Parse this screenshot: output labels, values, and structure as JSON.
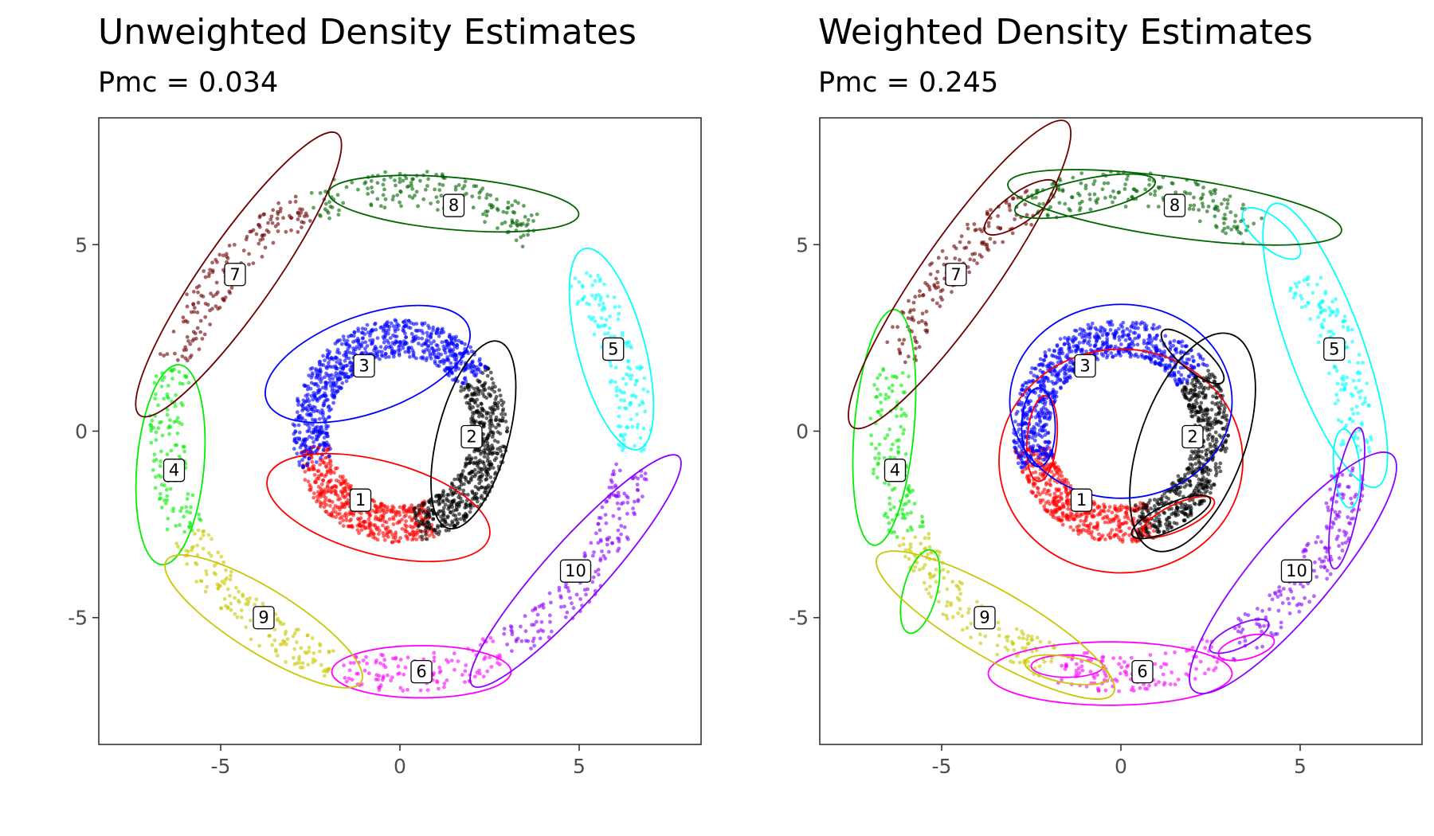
{
  "chart_data": [
    {
      "type": "scatter",
      "title": "Unweighted Density Estimates",
      "subtitle": "Pmc = 0.034",
      "xlim": [
        -8.4,
        8.4
      ],
      "ylim": [
        -8.4,
        8.4
      ],
      "xticks": [
        -5,
        0,
        5
      ],
      "yticks": [
        -5,
        0,
        5
      ],
      "grid": false,
      "clusters": [
        {
          "label": "1",
          "color": "#ff0000",
          "ring": [
            2.0,
            3.0
          ],
          "angles": [
            190,
            290
          ],
          "label_pos": [
            -1.1,
            -1.85
          ],
          "contours": [
            {
              "cx": -0.6,
              "cy": -2.05,
              "rx": 3.2,
              "ry": 1.25,
              "rot": -15
            }
          ]
        },
        {
          "label": "2",
          "color": "#000000",
          "ring": [
            2.0,
            3.0
          ],
          "angles": [
            -80,
            35
          ],
          "label_pos": [
            2.0,
            -0.15
          ],
          "contours": [
            {
              "cx": 2.05,
              "cy": -0.1,
              "rx": 2.7,
              "ry": 0.95,
              "rot": 75
            }
          ]
        },
        {
          "label": "3",
          "color": "#0000ff",
          "ring": [
            2.0,
            3.0
          ],
          "angles": [
            35,
            200
          ],
          "label_pos": [
            -1.0,
            1.75
          ],
          "contours": [
            {
              "cx": -0.9,
              "cy": 1.8,
              "rx": 3.0,
              "ry": 1.3,
              "rot": 20
            }
          ]
        },
        {
          "label": "4",
          "color": "#00ee00",
          "ring": [
            6.0,
            7.0
          ],
          "angles": [
            165,
            205
          ],
          "label_pos": [
            -6.3,
            -1.05
          ],
          "contours": [
            {
              "cx": -6.4,
              "cy": -0.9,
              "rx": 2.8,
              "ry": 0.9,
              "rot": 85
            }
          ]
        },
        {
          "label": "5",
          "color": "#00ffff",
          "ring": [
            6.0,
            7.0
          ],
          "angles": [
            -5,
            40
          ],
          "label_pos": [
            5.95,
            2.2
          ],
          "contours": [
            {
              "cx": 5.9,
              "cy": 2.2,
              "rx": 2.9,
              "ry": 0.9,
              "rot": -75
            }
          ]
        },
        {
          "label": "6",
          "color": "#ff00ff",
          "ring": [
            6.0,
            7.0
          ],
          "angles": [
            255,
            295
          ],
          "label_pos": [
            0.6,
            -6.45
          ],
          "contours": [
            {
              "cx": 0.6,
              "cy": -6.45,
              "rx": 2.5,
              "ry": 0.7,
              "rot": 0
            }
          ]
        },
        {
          "label": "7",
          "color": "#6b0000",
          "ring": [
            6.0,
            7.0
          ],
          "angles": [
            112,
            163
          ],
          "label_pos": [
            -4.6,
            4.2
          ],
          "contours": [
            {
              "cx": -4.5,
              "cy": 4.2,
              "rx": 4.8,
              "ry": 0.95,
              "rot": 55
            }
          ]
        },
        {
          "label": "8",
          "color": "#006400",
          "ring": [
            6.0,
            7.0
          ],
          "angles": [
            55,
            112
          ],
          "label_pos": [
            1.5,
            6.05
          ],
          "contours": [
            {
              "cx": 1.5,
              "cy": 6.1,
              "rx": 3.5,
              "ry": 0.7,
              "rot": -5
            }
          ]
        },
        {
          "label": "9",
          "color": "#c8c800",
          "ring": [
            6.0,
            7.0
          ],
          "angles": [
            205,
            253
          ],
          "label_pos": [
            -3.8,
            -5.0
          ],
          "contours": [
            {
              "cx": -3.8,
              "cy": -5.1,
              "rx": 3.2,
              "ry": 0.85,
              "rot": -32
            }
          ]
        },
        {
          "label": "10",
          "color": "#8b00ff",
          "ring": [
            6.0,
            7.0
          ],
          "angles": [
            297,
            352
          ],
          "label_pos": [
            4.9,
            -3.75
          ],
          "contours": [
            {
              "cx": 4.9,
              "cy": -3.75,
              "rx": 4.3,
              "ry": 0.8,
              "rot": 48
            }
          ]
        }
      ]
    },
    {
      "type": "scatter",
      "title": "Weighted Density Estimates",
      "subtitle": "Pmc = 0.245",
      "xlim": [
        -8.4,
        8.4
      ],
      "ylim": [
        -8.4,
        8.4
      ],
      "xticks": [
        -5,
        0,
        5
      ],
      "yticks": [
        -5,
        0,
        5
      ],
      "grid": false,
      "clusters": [
        {
          "label": "1",
          "color": "#ff0000",
          "ring": [
            2.0,
            3.0
          ],
          "angles": [
            190,
            290
          ],
          "label_pos": [
            -1.1,
            -1.85
          ],
          "contours": [
            {
              "cx": 0.0,
              "cy": -0.8,
              "rx": 3.4,
              "ry": 3.0,
              "rot": 0
            },
            {
              "cx": -2.2,
              "cy": -0.2,
              "rx": 1.2,
              "ry": 0.4,
              "rot": 85
            },
            {
              "cx": 1.6,
              "cy": -2.3,
              "rx": 1.1,
              "ry": 0.35,
              "rot": 25
            }
          ]
        },
        {
          "label": "2",
          "color": "#000000",
          "ring": [
            2.0,
            3.0
          ],
          "angles": [
            -80,
            35
          ],
          "label_pos": [
            2.0,
            -0.15
          ],
          "contours": [
            {
              "cx": 2.0,
              "cy": -0.3,
              "rx": 3.2,
              "ry": 1.4,
              "rot": 70
            },
            {
              "cx": 2.0,
              "cy": 2.0,
              "rx": 1.1,
              "ry": 0.35,
              "rot": -40
            },
            {
              "cx": 1.4,
              "cy": -2.3,
              "rx": 1.2,
              "ry": 0.35,
              "rot": 25
            }
          ]
        },
        {
          "label": "3",
          "color": "#0000ff",
          "ring": [
            2.0,
            3.0
          ],
          "angles": [
            35,
            200
          ],
          "label_pos": [
            -1.0,
            1.75
          ],
          "contours": [
            {
              "cx": 0.0,
              "cy": 0.8,
              "rx": 3.1,
              "ry": 2.6,
              "rot": 0
            },
            {
              "cx": -2.3,
              "cy": 0.1,
              "rx": 1.1,
              "ry": 0.45,
              "rot": 90
            }
          ]
        },
        {
          "label": "4",
          "color": "#00ee00",
          "ring": [
            6.0,
            7.0
          ],
          "angles": [
            165,
            205
          ],
          "label_pos": [
            -6.3,
            -1.05
          ],
          "contours": [
            {
              "cx": -6.6,
              "cy": 0.1,
              "rx": 3.3,
              "ry": 0.8,
              "rot": 85
            },
            {
              "cx": -5.6,
              "cy": -4.3,
              "rx": 1.2,
              "ry": 0.45,
              "rot": 75
            }
          ]
        },
        {
          "label": "5",
          "color": "#00ffff",
          "ring": [
            6.0,
            7.0
          ],
          "angles": [
            -5,
            40
          ],
          "label_pos": [
            5.95,
            2.2
          ],
          "contours": [
            {
              "cx": 5.7,
              "cy": 2.3,
              "rx": 4.2,
              "ry": 1.0,
              "rot": -70
            },
            {
              "cx": 4.2,
              "cy": 5.3,
              "rx": 1.0,
              "ry": 0.4,
              "rot": -40
            },
            {
              "cx": 6.3,
              "cy": -1.0,
              "rx": 1.1,
              "ry": 0.35,
              "rot": -85
            }
          ]
        },
        {
          "label": "6",
          "color": "#ff00ff",
          "ring": [
            6.0,
            7.0
          ],
          "angles": [
            255,
            295
          ],
          "label_pos": [
            0.6,
            -6.45
          ],
          "contours": [
            {
              "cx": -0.3,
              "cy": -6.5,
              "rx": 3.4,
              "ry": 0.85,
              "rot": 0
            },
            {
              "cx": -1.5,
              "cy": -6.3,
              "rx": 1.0,
              "ry": 0.3,
              "rot": 0
            },
            {
              "cx": 3.5,
              "cy": -5.8,
              "rx": 0.8,
              "ry": 0.3,
              "rot": 15
            }
          ]
        },
        {
          "label": "7",
          "color": "#6b0000",
          "ring": [
            6.0,
            7.0
          ],
          "angles": [
            112,
            163
          ],
          "label_pos": [
            -4.6,
            4.2
          ],
          "contours": [
            {
              "cx": -4.5,
              "cy": 4.2,
              "rx": 5.2,
              "ry": 1.0,
              "rot": 55
            },
            {
              "cx": -2.8,
              "cy": 6.0,
              "rx": 1.2,
              "ry": 0.4,
              "rot": 35
            }
          ]
        },
        {
          "label": "8",
          "color": "#006400",
          "ring": [
            6.0,
            7.0
          ],
          "angles": [
            55,
            112
          ],
          "label_pos": [
            1.5,
            6.05
          ],
          "contours": [
            {
              "cx": 1.5,
              "cy": 6.0,
              "rx": 4.7,
              "ry": 0.8,
              "rot": -8
            },
            {
              "cx": -1.0,
              "cy": 6.3,
              "rx": 2.0,
              "ry": 0.45,
              "rot": 12
            }
          ]
        },
        {
          "label": "9",
          "color": "#c8c800",
          "ring": [
            6.0,
            7.0
          ],
          "angles": [
            205,
            253
          ],
          "label_pos": [
            -3.8,
            -5.0
          ],
          "contours": [
            {
              "cx": -3.5,
              "cy": -5.2,
              "rx": 3.8,
              "ry": 0.9,
              "rot": -30
            },
            {
              "cx": -1.5,
              "cy": -6.4,
              "rx": 1.2,
              "ry": 0.35,
              "rot": -10
            }
          ]
        },
        {
          "label": "10",
          "color": "#8b00ff",
          "ring": [
            6.0,
            7.0
          ],
          "angles": [
            297,
            352
          ],
          "label_pos": [
            4.9,
            -3.75
          ],
          "contours": [
            {
              "cx": 4.8,
              "cy": -3.8,
              "rx": 4.3,
              "ry": 1.05,
              "rot": 50
            },
            {
              "cx": 6.3,
              "cy": -1.8,
              "rx": 2.0,
              "ry": 0.35,
              "rot": 80
            },
            {
              "cx": 3.3,
              "cy": -5.5,
              "rx": 0.9,
              "ry": 0.3,
              "rot": 25
            }
          ]
        }
      ]
    }
  ]
}
